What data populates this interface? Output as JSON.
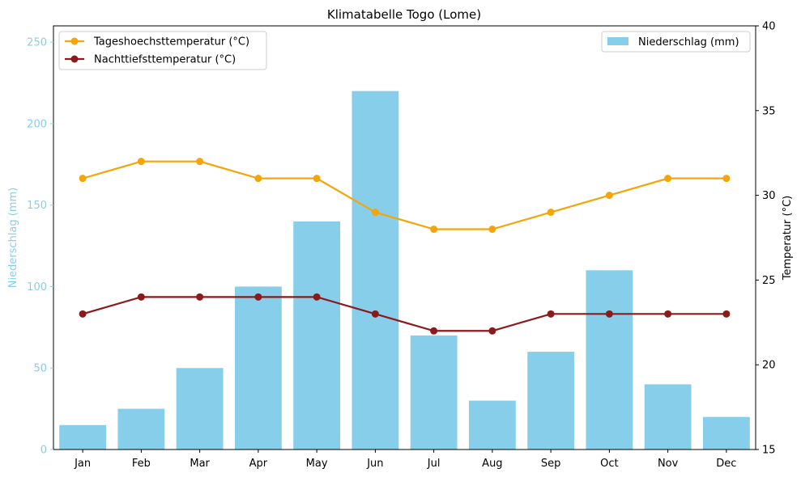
{
  "chart_data": {
    "type": "bar",
    "title": "Klimatabelle Togo (Lome)",
    "categories": [
      "Jan",
      "Feb",
      "Mar",
      "Apr",
      "May",
      "Jun",
      "Jul",
      "Aug",
      "Sep",
      "Oct",
      "Nov",
      "Dec"
    ],
    "bar_series": {
      "name": "Niederschlag (mm)",
      "values": [
        15,
        25,
        50,
        100,
        140,
        220,
        70,
        30,
        60,
        110,
        40,
        20
      ],
      "color": "#87ceeb"
    },
    "line_series": [
      {
        "name": "Tageshoechsttemperatur (°C)",
        "values": [
          31,
          32,
          32,
          31,
          31,
          29,
          28,
          28,
          29,
          30,
          31,
          31
        ],
        "color": "#f5a50a"
      },
      {
        "name": "Nachttiefsttemperatur (°C)",
        "values": [
          23,
          24,
          24,
          24,
          24,
          23,
          22,
          22,
          23,
          23,
          23,
          23
        ],
        "color": "#8b1a1a"
      }
    ],
    "y_left": {
      "label": "Niederschlag (mm)",
      "lim": [
        0,
        260
      ],
      "ticks": [
        0,
        50,
        100,
        150,
        200,
        250
      ],
      "color": "#87ceeb"
    },
    "y_right": {
      "label": "Temperatur (°C)",
      "lim": [
        15,
        40
      ],
      "ticks": [
        15,
        20,
        25,
        30,
        35,
        40
      ],
      "color": "#000000"
    },
    "legend_lines_position": "top-left",
    "legend_bars_position": "top-right",
    "grid": false
  }
}
